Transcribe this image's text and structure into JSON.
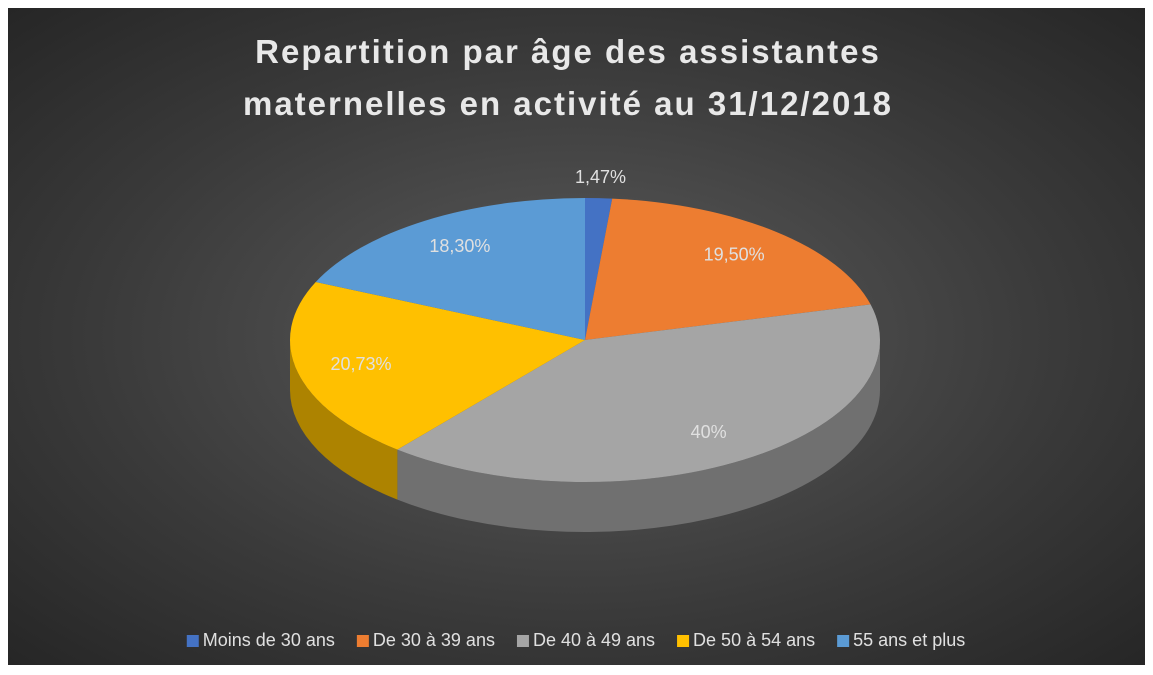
{
  "chart_data": {
    "type": "pie3d",
    "title": "Repartition par âge des assistantes maternelles en activité au 31/12/2018",
    "categories": [
      "Moins de 30 ans",
      "De 30 à 39 ans",
      "De 40 à 49 ans",
      "De 50 à 54 ans",
      "55 ans et plus"
    ],
    "values": [
      1.47,
      19.5,
      40,
      20.73,
      18.3
    ],
    "value_labels": [
      "1,47%",
      "19,50%",
      "40%",
      "20,73%",
      "18,30%"
    ],
    "colors": [
      "#4472c4",
      "#ed7d31",
      "#a5a5a5",
      "#ffc000",
      "#5b9bd5"
    ],
    "legend": "bottom"
  }
}
